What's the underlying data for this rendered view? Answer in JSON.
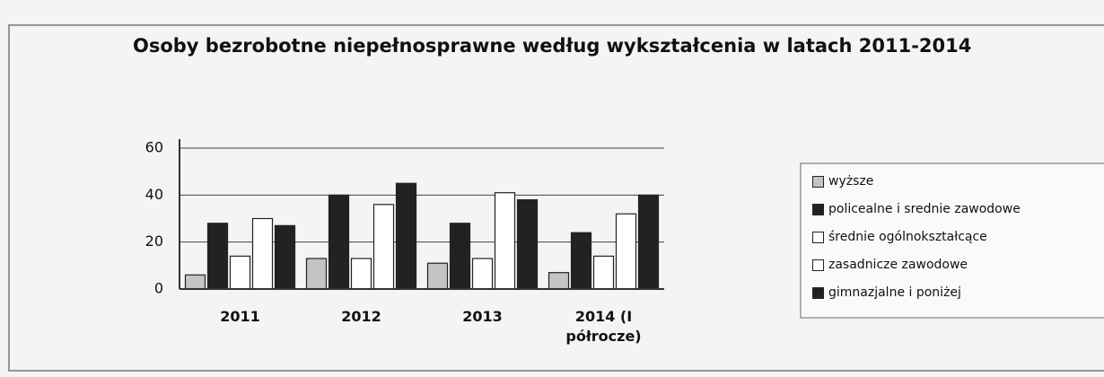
{
  "chart_data": {
    "type": "bar",
    "title": "Osoby bezrobotne niepełnosprawne według wykształcenia w latach 2011-2014",
    "categories": [
      "2011",
      "2012",
      "2013",
      "2014 (I półrocze)"
    ],
    "series": [
      {
        "name": "wyższe",
        "color": "#c4c4c4",
        "values": [
          6,
          13,
          11,
          7
        ]
      },
      {
        "name": "policealne i srednie zawodowe",
        "color": "#222222",
        "values": [
          28,
          40,
          28,
          24
        ]
      },
      {
        "name": "średnie ogólnokształcące",
        "color": "#ffffff",
        "values": [
          14,
          13,
          13,
          14
        ]
      },
      {
        "name": "zasadnicze zawodowe",
        "color": "#ffffff",
        "values": [
          30,
          36,
          41,
          32
        ]
      },
      {
        "name": "gimnazjalne i poniżej",
        "color": "#222222",
        "values": [
          27,
          45,
          38,
          40
        ]
      }
    ],
    "ylim": [
      0,
      60
    ],
    "yticks": [
      0,
      20,
      40,
      60
    ],
    "grid": true,
    "legend": "right"
  }
}
